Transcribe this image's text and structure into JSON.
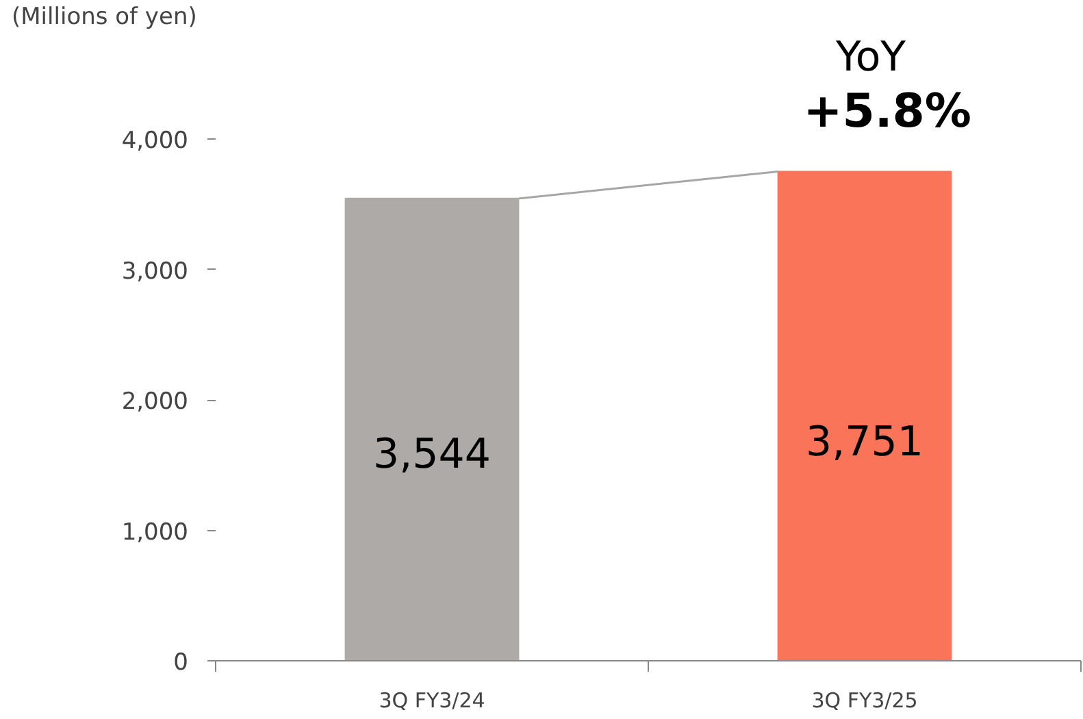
{
  "chart_data": {
    "type": "bar",
    "ylabel": "(Millions of yen)",
    "categories": [
      "3Q FY3/24",
      "3Q FY3/25"
    ],
    "values": [
      3544,
      3751
    ],
    "colors": [
      "#aeaaa7",
      "#f97458"
    ],
    "value_labels": [
      "3,544",
      "3,751"
    ],
    "ylim": [
      0,
      4000
    ],
    "yticks": [
      {
        "value": 0,
        "label": "0"
      },
      {
        "value": 1000,
        "label": "1,000"
      },
      {
        "value": 2000,
        "label": "2,000"
      },
      {
        "value": 3000,
        "label": "3,000"
      },
      {
        "value": 4000,
        "label": "4,000"
      }
    ],
    "annotations": [
      "YoY",
      {
        "text": "+5.8%",
        "x": "3Q FY3/25",
        "y": 3751
      }
    ],
    "grid": false
  }
}
